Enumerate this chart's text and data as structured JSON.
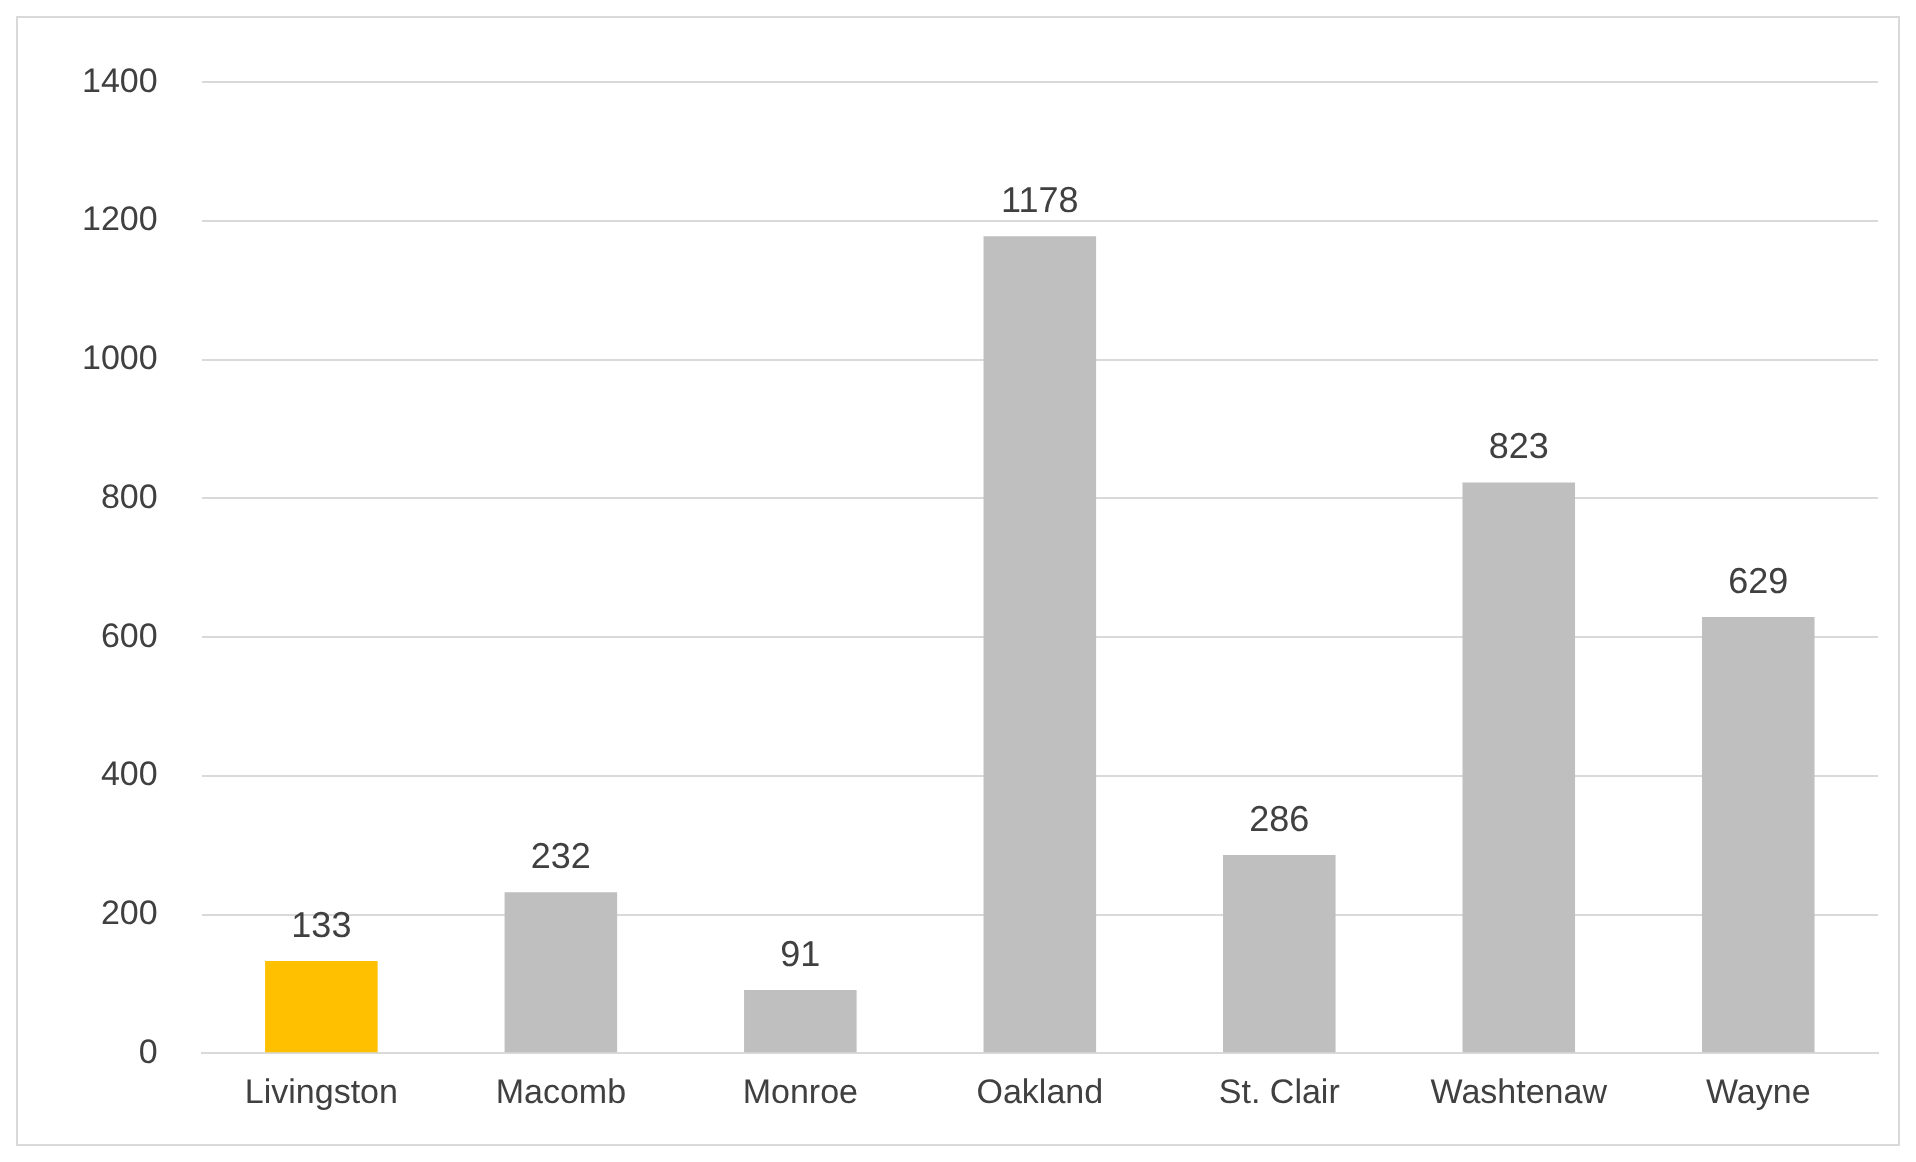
{
  "chart_data": {
    "type": "bar",
    "categories": [
      "Livingston",
      "Macomb",
      "Monroe",
      "Oakland",
      "St. Clair",
      "Washtenaw",
      "Wayne"
    ],
    "values": [
      133,
      232,
      91,
      1178,
      286,
      823,
      629
    ],
    "colors": [
      "#ffc000",
      "#bfbfbf",
      "#bfbfbf",
      "#bfbfbf",
      "#bfbfbf",
      "#bfbfbf",
      "#bfbfbf"
    ],
    "ylim": [
      0,
      1400
    ],
    "yticks": [
      0,
      200,
      400,
      600,
      800,
      1000,
      1200,
      1400
    ],
    "grid": "y",
    "data_labels": true,
    "legend": false
  }
}
